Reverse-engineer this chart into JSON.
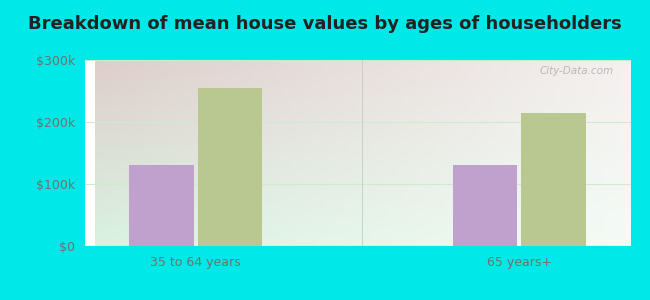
{
  "title": "Breakdown of mean house values by ages of householders",
  "categories": [
    "35 to 64 years",
    "65 years+"
  ],
  "series": {
    "Dougherty": [
      130000,
      130000
    ],
    "Oklahoma": [
      255000,
      215000
    ]
  },
  "bar_colors": {
    "Dougherty": "#c0a0cc",
    "Oklahoma": "#b8c890"
  },
  "ylim": [
    0,
    300000
  ],
  "yticks": [
    0,
    100000,
    200000,
    300000
  ],
  "ytick_labels": [
    "$0",
    "$100k",
    "$200k",
    "$300k"
  ],
  "background_outer": "#00e8e8",
  "title_fontsize": 13,
  "legend_fontsize": 9,
  "tick_fontsize": 9,
  "bar_width": 0.32,
  "watermark": "City-Data.com"
}
